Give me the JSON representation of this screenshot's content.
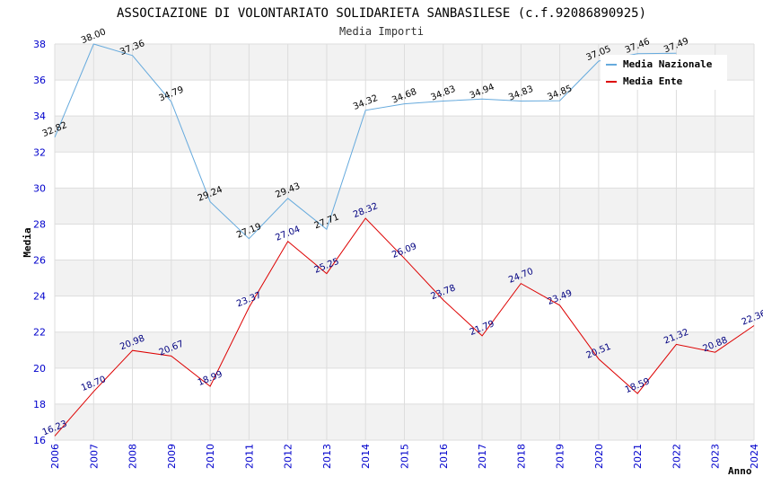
{
  "chart_data": {
    "type": "line",
    "title": "ASSOCIAZIONE DI VOLONTARIATO SOLIDARIETA SANBASILESE (c.f.92086890925)",
    "subtitle": "Media Importi",
    "xlabel": "Anno",
    "ylabel": "Media",
    "ylim": [
      16,
      38
    ],
    "yticks": [
      "16",
      "18",
      "20",
      "22",
      "24",
      "26",
      "28",
      "30",
      "32",
      "34",
      "36",
      "38"
    ],
    "categories": [
      "2006",
      "2007",
      "2008",
      "2009",
      "2010",
      "2011",
      "2012",
      "2013",
      "2014",
      "2015",
      "2016",
      "2017",
      "2018",
      "2019",
      "2020",
      "2021",
      "2022",
      "2023",
      "2024"
    ],
    "series": [
      {
        "name": "Media Nazionale",
        "color": "#66aadd",
        "label_color": "#000000",
        "values": [
          32.82,
          38.0,
          37.36,
          34.79,
          29.24,
          27.19,
          29.43,
          27.71,
          34.32,
          34.68,
          34.83,
          34.94,
          34.83,
          34.85,
          37.05,
          37.46,
          37.49,
          null,
          null
        ],
        "labels": [
          "32.82",
          "38.00",
          "37.36",
          "34.79",
          "29.24",
          "27.19",
          "29.43",
          "27.71",
          "34.32",
          "34.68",
          "34.83",
          "34.94",
          "34.83",
          "34.85",
          "37.05",
          "37.46",
          "37.49",
          "",
          ""
        ]
      },
      {
        "name": "Media Ente",
        "color": "#dd0000",
        "label_color": "#000080",
        "values": [
          16.23,
          18.7,
          20.98,
          20.67,
          18.99,
          23.37,
          27.04,
          25.25,
          28.32,
          26.09,
          23.78,
          21.79,
          24.7,
          23.49,
          20.51,
          18.59,
          21.32,
          20.88,
          22.36
        ],
        "labels": [
          "16.23",
          "18.70",
          "20.98",
          "20.67",
          "18.99",
          "23.37",
          "27.04",
          "25.25",
          "28.32",
          "26.09",
          "23.78",
          "21.79",
          "24.70",
          "23.49",
          "20.51",
          "18.59",
          "21.32",
          "20.88",
          "22.36"
        ]
      }
    ],
    "legend": "top-right",
    "grid": true
  }
}
